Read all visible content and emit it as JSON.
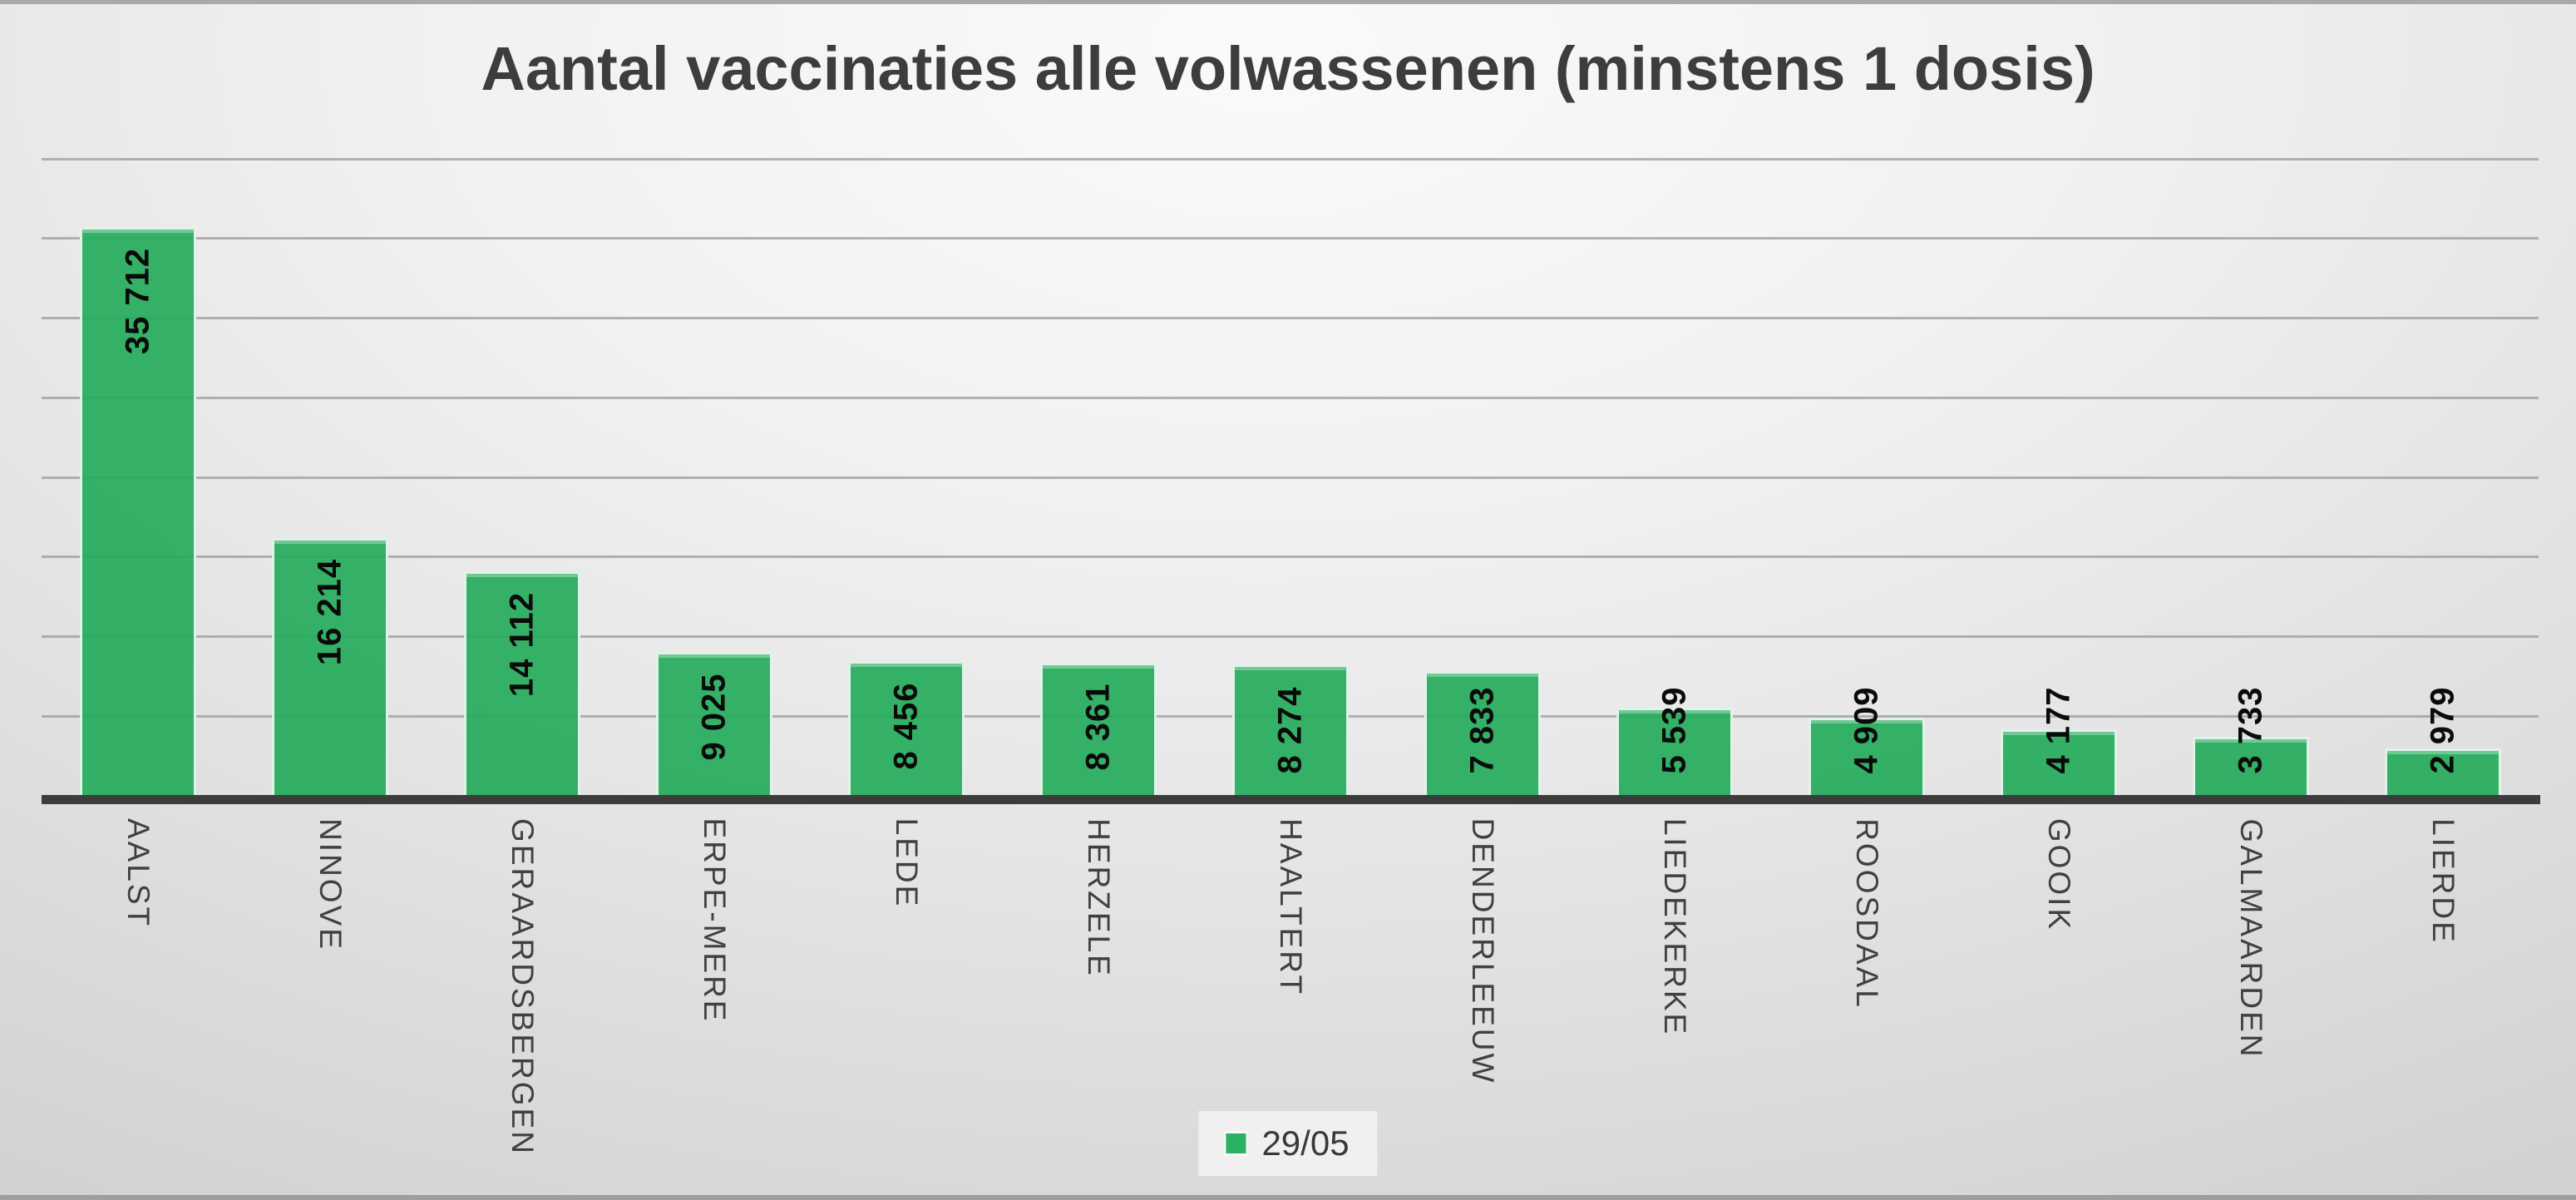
{
  "chart_data": {
    "type": "bar",
    "title": "Aantal vaccinaties alle volwassenen (minstens 1 dosis)",
    "categories": [
      "AALST",
      "NINOVE",
      "GERAARDSBERGEN",
      "ERPE-MERE",
      "LEDE",
      "HERZELE",
      "HAALTERT",
      "DENDERLEEUW",
      "LIEDEKERKE",
      "ROOSDAAL",
      "GOOIK",
      "GALMAARDEN",
      "LIERDE"
    ],
    "series": [
      {
        "name": "29/05",
        "values": [
          35712,
          16214,
          14112,
          9025,
          8456,
          8361,
          8274,
          7833,
          5539,
          4909,
          4177,
          3733,
          2979
        ]
      }
    ],
    "value_labels": [
      "35 712",
      "16 214",
      "14 112",
      "9 025",
      "8 456",
      "8 361",
      "8 274",
      "7 833",
      "5 539",
      "4 909",
      "4 177",
      "3 733",
      "2 979"
    ],
    "xlabel": "",
    "ylabel": "",
    "ylim": [
      0,
      40000
    ],
    "gridline_interval": 5000,
    "grid": true,
    "y_tick_labels_visible": false,
    "legend_position": "bottom-center",
    "bar_label_rotation": "bottom-to-top",
    "category_label_rotation": "top-to-bottom"
  },
  "legend": {
    "label": "29/05"
  },
  "colors": {
    "series_solid": "#2bb162",
    "series_fill": "rgba(38,172,93,0.93)",
    "bar_edge": "rgba(255,255,255,0.85)",
    "gridline": "#9b9b9b",
    "axis_line": "#3c3c3c",
    "title_text": "#3d3d3d",
    "category_text": "#404040",
    "value_text": "#0a0a0a",
    "legend_bg": "#f0f0f0",
    "legend_text": "#393939"
  }
}
